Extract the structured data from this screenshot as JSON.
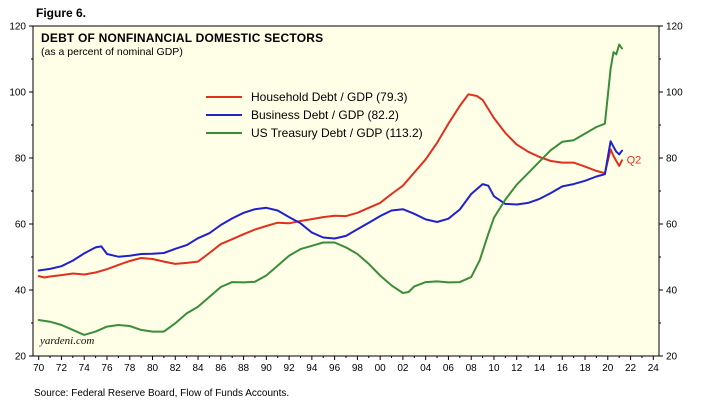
{
  "figure_label": "Figure 6.",
  "chart_data": {
    "type": "line",
    "title": "DEBT OF NONFINANCIAL DOMESTIC SECTORS",
    "subtitle": "(as a percent of nominal GDP)",
    "watermark": "yardeni.com",
    "source": "Source: Federal Reserve Board, Flow of Funds Accounts.",
    "plot_bg": "#fffee7",
    "frame_color": "#000000",
    "x_range": [
      1969.5,
      2024.5
    ],
    "y_range": [
      20,
      120
    ],
    "y_ticks": [
      20,
      40,
      60,
      80,
      100,
      120
    ],
    "x_ticks": [
      "70",
      "72",
      "74",
      "76",
      "78",
      "80",
      "82",
      "84",
      "86",
      "88",
      "90",
      "92",
      "94",
      "96",
      "98",
      "00",
      "02",
      "04",
      "06",
      "08",
      "10",
      "12",
      "14",
      "16",
      "18",
      "20",
      "22",
      "24"
    ],
    "legend_position": "upper-left-of-center",
    "grid": false,
    "annotations": [
      {
        "text": "Q2",
        "x": 2022.3,
        "y": 79.5,
        "color": "#e0301e"
      }
    ],
    "series": [
      {
        "key": "household",
        "name": "Household Debt / GDP (79.3)",
        "color": "#e0301e",
        "latest_value": 79.3,
        "points": [
          [
            1970,
            44.2
          ],
          [
            1970.5,
            43.8
          ],
          [
            1971,
            44.1
          ],
          [
            1972,
            44.5
          ],
          [
            1973,
            45.0
          ],
          [
            1974,
            44.7
          ],
          [
            1975,
            45.3
          ],
          [
            1976,
            46.3
          ],
          [
            1977,
            47.6
          ],
          [
            1978,
            48.8
          ],
          [
            1979,
            49.7
          ],
          [
            1980,
            49.4
          ],
          [
            1981,
            48.6
          ],
          [
            1982,
            47.9
          ],
          [
            1983,
            48.2
          ],
          [
            1984,
            48.6
          ],
          [
            1985,
            51.2
          ],
          [
            1986,
            53.9
          ],
          [
            1987,
            55.4
          ],
          [
            1988,
            56.9
          ],
          [
            1989,
            58.3
          ],
          [
            1990,
            59.4
          ],
          [
            1991,
            60.4
          ],
          [
            1992,
            60.2
          ],
          [
            1993,
            60.9
          ],
          [
            1994,
            61.5
          ],
          [
            1995,
            62.1
          ],
          [
            1996,
            62.5
          ],
          [
            1997,
            62.4
          ],
          [
            1998,
            63.4
          ],
          [
            1999,
            64.9
          ],
          [
            2000,
            66.4
          ],
          [
            2001,
            69.1
          ],
          [
            2002,
            71.6
          ],
          [
            2003,
            75.6
          ],
          [
            2004,
            79.6
          ],
          [
            2005,
            84.6
          ],
          [
            2006,
            90.4
          ],
          [
            2007,
            95.8
          ],
          [
            2007.75,
            99.3
          ],
          [
            2008.5,
            98.8
          ],
          [
            2009,
            97.6
          ],
          [
            2010,
            92.1
          ],
          [
            2011,
            87.6
          ],
          [
            2012,
            84.1
          ],
          [
            2013,
            81.9
          ],
          [
            2014,
            80.3
          ],
          [
            2015,
            79.1
          ],
          [
            2016,
            78.6
          ],
          [
            2017,
            78.6
          ],
          [
            2018,
            77.4
          ],
          [
            2019,
            76.1
          ],
          [
            2019.75,
            75.4
          ],
          [
            2020.25,
            82.6
          ],
          [
            2020.5,
            80.6
          ],
          [
            2020.75,
            79.1
          ],
          [
            2021,
            77.6
          ],
          [
            2021.25,
            79.3
          ]
        ]
      },
      {
        "key": "business",
        "name": "Business Debt / GDP (82.2)",
        "color": "#2121cc",
        "latest_value": 82.2,
        "points": [
          [
            1970,
            45.9
          ],
          [
            1971,
            46.4
          ],
          [
            1972,
            47.2
          ],
          [
            1973,
            48.9
          ],
          [
            1974,
            51.1
          ],
          [
            1975,
            52.9
          ],
          [
            1975.5,
            53.2
          ],
          [
            1976,
            50.9
          ],
          [
            1977,
            50.1
          ],
          [
            1978,
            50.4
          ],
          [
            1979,
            50.9
          ],
          [
            1980,
            51.0
          ],
          [
            1981,
            51.2
          ],
          [
            1982,
            52.5
          ],
          [
            1983,
            53.6
          ],
          [
            1984,
            55.7
          ],
          [
            1985,
            57.2
          ],
          [
            1986,
            59.7
          ],
          [
            1987,
            61.7
          ],
          [
            1988,
            63.4
          ],
          [
            1989,
            64.5
          ],
          [
            1990,
            64.9
          ],
          [
            1991,
            64.1
          ],
          [
            1992,
            62.1
          ],
          [
            1993,
            60.2
          ],
          [
            1994,
            57.4
          ],
          [
            1995,
            55.9
          ],
          [
            1996,
            55.6
          ],
          [
            1997,
            56.4
          ],
          [
            1998,
            58.4
          ],
          [
            1999,
            60.4
          ],
          [
            2000,
            62.4
          ],
          [
            2001,
            64.1
          ],
          [
            2002,
            64.5
          ],
          [
            2003,
            63.1
          ],
          [
            2004,
            61.4
          ],
          [
            2005,
            60.6
          ],
          [
            2006,
            61.6
          ],
          [
            2007,
            64.4
          ],
          [
            2008,
            69.1
          ],
          [
            2009,
            72.1
          ],
          [
            2009.5,
            71.6
          ],
          [
            2010,
            68.4
          ],
          [
            2011,
            66.1
          ],
          [
            2012,
            65.9
          ],
          [
            2013,
            66.4
          ],
          [
            2014,
            67.6
          ],
          [
            2015,
            69.4
          ],
          [
            2016,
            71.4
          ],
          [
            2017,
            72.1
          ],
          [
            2018,
            73.1
          ],
          [
            2019,
            74.4
          ],
          [
            2019.75,
            75.1
          ],
          [
            2020.25,
            85.1
          ],
          [
            2020.5,
            83.4
          ],
          [
            2020.75,
            81.9
          ],
          [
            2021,
            81.1
          ],
          [
            2021.25,
            82.2
          ]
        ]
      },
      {
        "key": "treasury",
        "name": "US Treasury Debt / GDP (113.2)",
        "color": "#3a8e3a",
        "latest_value": 113.2,
        "points": [
          [
            1970,
            30.9
          ],
          [
            1971,
            30.4
          ],
          [
            1972,
            29.4
          ],
          [
            1973,
            27.9
          ],
          [
            1974,
            26.4
          ],
          [
            1975,
            27.4
          ],
          [
            1976,
            28.9
          ],
          [
            1977,
            29.4
          ],
          [
            1978,
            29.1
          ],
          [
            1979,
            27.9
          ],
          [
            1980,
            27.4
          ],
          [
            1981,
            27.4
          ],
          [
            1982,
            29.9
          ],
          [
            1983,
            32.9
          ],
          [
            1984,
            34.9
          ],
          [
            1985,
            37.9
          ],
          [
            1986,
            40.9
          ],
          [
            1987,
            42.4
          ],
          [
            1988,
            42.3
          ],
          [
            1989,
            42.5
          ],
          [
            1990,
            44.4
          ],
          [
            1991,
            47.4
          ],
          [
            1992,
            50.4
          ],
          [
            1993,
            52.4
          ],
          [
            1994,
            53.4
          ],
          [
            1995,
            54.4
          ],
          [
            1996,
            54.4
          ],
          [
            1997,
            52.9
          ],
          [
            1998,
            50.9
          ],
          [
            1999,
            47.9
          ],
          [
            2000,
            44.4
          ],
          [
            2001,
            41.4
          ],
          [
            2002,
            39.1
          ],
          [
            2002.5,
            39.4
          ],
          [
            2003,
            41.1
          ],
          [
            2004,
            42.4
          ],
          [
            2005,
            42.6
          ],
          [
            2006,
            42.3
          ],
          [
            2007,
            42.4
          ],
          [
            2008,
            43.9
          ],
          [
            2008.75,
            49.0
          ],
          [
            2009.5,
            57.0
          ],
          [
            2010,
            61.9
          ],
          [
            2011,
            67.4
          ],
          [
            2012,
            71.9
          ],
          [
            2013,
            75.4
          ],
          [
            2014,
            78.9
          ],
          [
            2015,
            82.4
          ],
          [
            2016,
            84.9
          ],
          [
            2017,
            85.4
          ],
          [
            2018,
            87.4
          ],
          [
            2019,
            89.4
          ],
          [
            2019.75,
            90.4
          ],
          [
            2020.25,
            107.0
          ],
          [
            2020.5,
            112.1
          ],
          [
            2020.75,
            111.4
          ],
          [
            2021,
            114.4
          ],
          [
            2021.25,
            113.2
          ]
        ]
      }
    ]
  }
}
